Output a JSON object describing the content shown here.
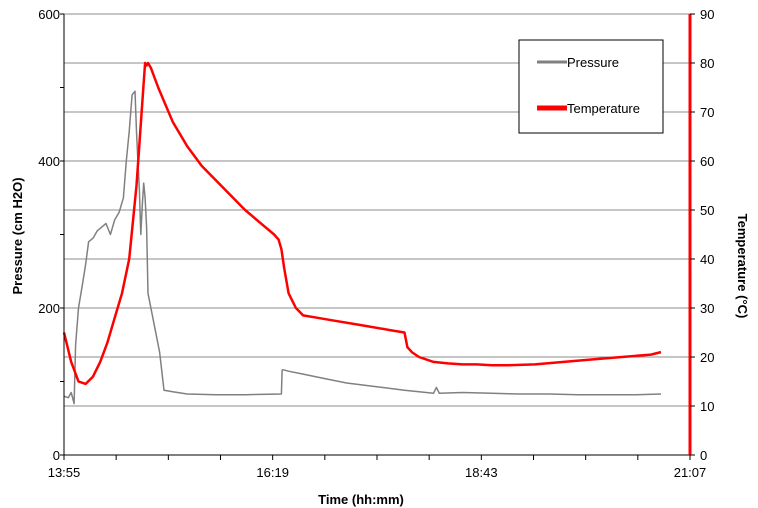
{
  "chart_data": {
    "type": "line",
    "xlabel": "Time (hh:mm)",
    "ylabel_left": "Pressure (cm H2O)",
    "ylabel_right": "Temperature (°C)",
    "x_ticks": [
      "13:55",
      "16:19",
      "18:43",
      "21:07"
    ],
    "x_range_minutes": [
      835,
      1267
    ],
    "ylim_left": [
      0,
      600
    ],
    "ylim_right": [
      0,
      90
    ],
    "y_ticks_left": [
      "0",
      "200",
      "400",
      "600"
    ],
    "y_ticks_right": [
      "0",
      "10",
      "20",
      "30",
      "40",
      "50",
      "60",
      "70",
      "80",
      "90"
    ],
    "grid": "horizontal",
    "legend_position": "top-right",
    "series": [
      {
        "name": "Pressure",
        "color": "#808080",
        "axis": "left",
        "x_minutes": [
          835,
          838,
          840,
          842,
          843,
          845,
          848,
          850,
          852,
          855,
          858,
          861,
          864,
          867,
          870,
          873,
          876,
          878,
          880,
          882,
          884,
          885,
          886,
          887,
          888,
          889,
          890,
          891,
          892,
          893,
          895,
          897,
          899,
          901,
          904,
          910,
          920,
          940,
          960,
          985,
          985.5,
          986,
          990,
          1000,
          1015,
          1030,
          1050,
          1070,
          1090,
          1092,
          1094,
          1110,
          1130,
          1150,
          1170,
          1190,
          1210,
          1230,
          1247
        ],
        "values": [
          80,
          78,
          85,
          70,
          150,
          200,
          235,
          260,
          290,
          295,
          305,
          310,
          315,
          300,
          320,
          330,
          350,
          400,
          440,
          490,
          495,
          440,
          400,
          360,
          300,
          340,
          370,
          350,
          310,
          220,
          200,
          180,
          160,
          140,
          88,
          86,
          83,
          82,
          82,
          83,
          115,
          116,
          114,
          110,
          104,
          98,
          93,
          88,
          84,
          92,
          84,
          85,
          84,
          83,
          83,
          82,
          82,
          82,
          83
        ]
      },
      {
        "name": "Temperature",
        "color": "#ff0000",
        "axis": "right",
        "x_minutes": [
          835,
          840,
          845,
          850,
          855,
          860,
          865,
          870,
          875,
          880,
          885,
          890,
          891,
          892,
          893,
          895,
          900,
          910,
          920,
          930,
          940,
          950,
          960,
          970,
          980,
          983,
          985,
          987,
          990,
          995,
          1000,
          1010,
          1020,
          1040,
          1060,
          1070,
          1072,
          1075,
          1080,
          1090,
          1100,
          1110,
          1120,
          1130,
          1140,
          1160,
          1180,
          1200,
          1220,
          1240,
          1247
        ],
        "values": [
          25,
          19,
          15,
          14.5,
          16,
          19,
          23,
          28,
          33,
          40,
          55,
          76,
          80,
          79.5,
          80,
          79,
          75,
          68,
          63,
          59,
          56,
          53,
          50,
          47.5,
          45,
          44,
          42,
          38,
          33,
          30,
          28.5,
          28,
          27.5,
          26.5,
          25.5,
          25,
          22,
          21,
          20,
          19,
          18.7,
          18.5,
          18.5,
          18.3,
          18.3,
          18.5,
          19,
          19.5,
          20,
          20.5,
          21
        ]
      }
    ]
  }
}
